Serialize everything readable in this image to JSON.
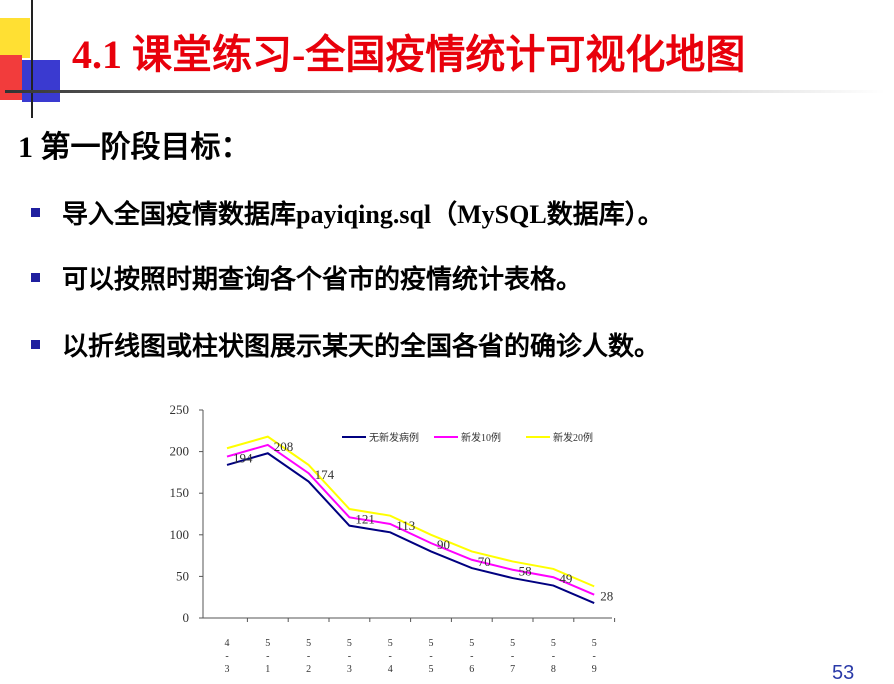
{
  "header": {
    "title": "4.1 课堂练习-全国疫情统计可视化地图"
  },
  "heading": "1 第一阶段目标：",
  "bullets": [
    "导入全国疫情数据库payiqing.sql（MySQL数据库）。",
    "可以按照时期查询各个省市的疫情统计表格。",
    "以折线图或柱状图展示某天的全国各省的确诊人数。"
  ],
  "chart_data": {
    "type": "line",
    "categories": [
      "4-3",
      "5-1",
      "5-2",
      "5-3",
      "5-4",
      "5-5",
      "5-6",
      "5-7",
      "5-8",
      "5-9"
    ],
    "series": [
      {
        "name": "无新发病例",
        "color": "#000080",
        "values": [
          184,
          198,
          164,
          111,
          103,
          80,
          60,
          48,
          39,
          18
        ]
      },
      {
        "name": "新发10例",
        "color": "#ff00ff",
        "values": [
          194,
          208,
          174,
          121,
          113,
          90,
          70,
          58,
          49,
          28
        ]
      },
      {
        "name": "新发20例",
        "color": "#ffff00",
        "values": [
          204,
          218,
          184,
          131,
          123,
          100,
          80,
          68,
          59,
          38
        ]
      }
    ],
    "ylim": [
      0,
      250
    ],
    "yticks": [
      0,
      50,
      100,
      150,
      200,
      250
    ],
    "data_labels_series": 1
  },
  "page_number": "53"
}
